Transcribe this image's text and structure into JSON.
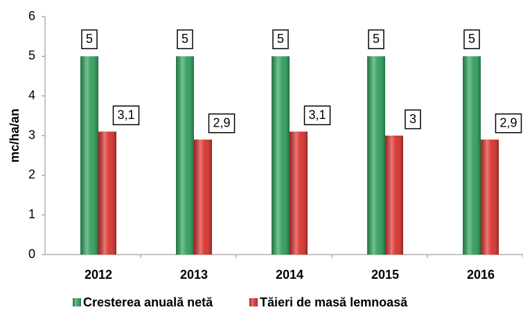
{
  "chart_data": {
    "type": "bar",
    "y_label": "mc/ha/an",
    "categories": [
      "2012",
      "2013",
      "2014",
      "2015",
      "2016"
    ],
    "series": [
      {
        "name": "Cresterea anuală netă",
        "color": "#2e9e5b",
        "values": [
          5,
          5,
          5,
          5,
          5
        ]
      },
      {
        "name": "Tăieri de masă lemnoasă",
        "color": "#d9302c",
        "values": [
          3.1,
          2.9,
          3.1,
          3,
          2.9
        ],
        "value_labels": [
          "3,1",
          "2,9",
          "3,1",
          "3",
          "2,9"
        ]
      }
    ],
    "ylim": [
      0,
      6
    ],
    "yticks": [
      0,
      1,
      2,
      3,
      4,
      5,
      6
    ],
    "grid": false,
    "legend": "bottom"
  }
}
